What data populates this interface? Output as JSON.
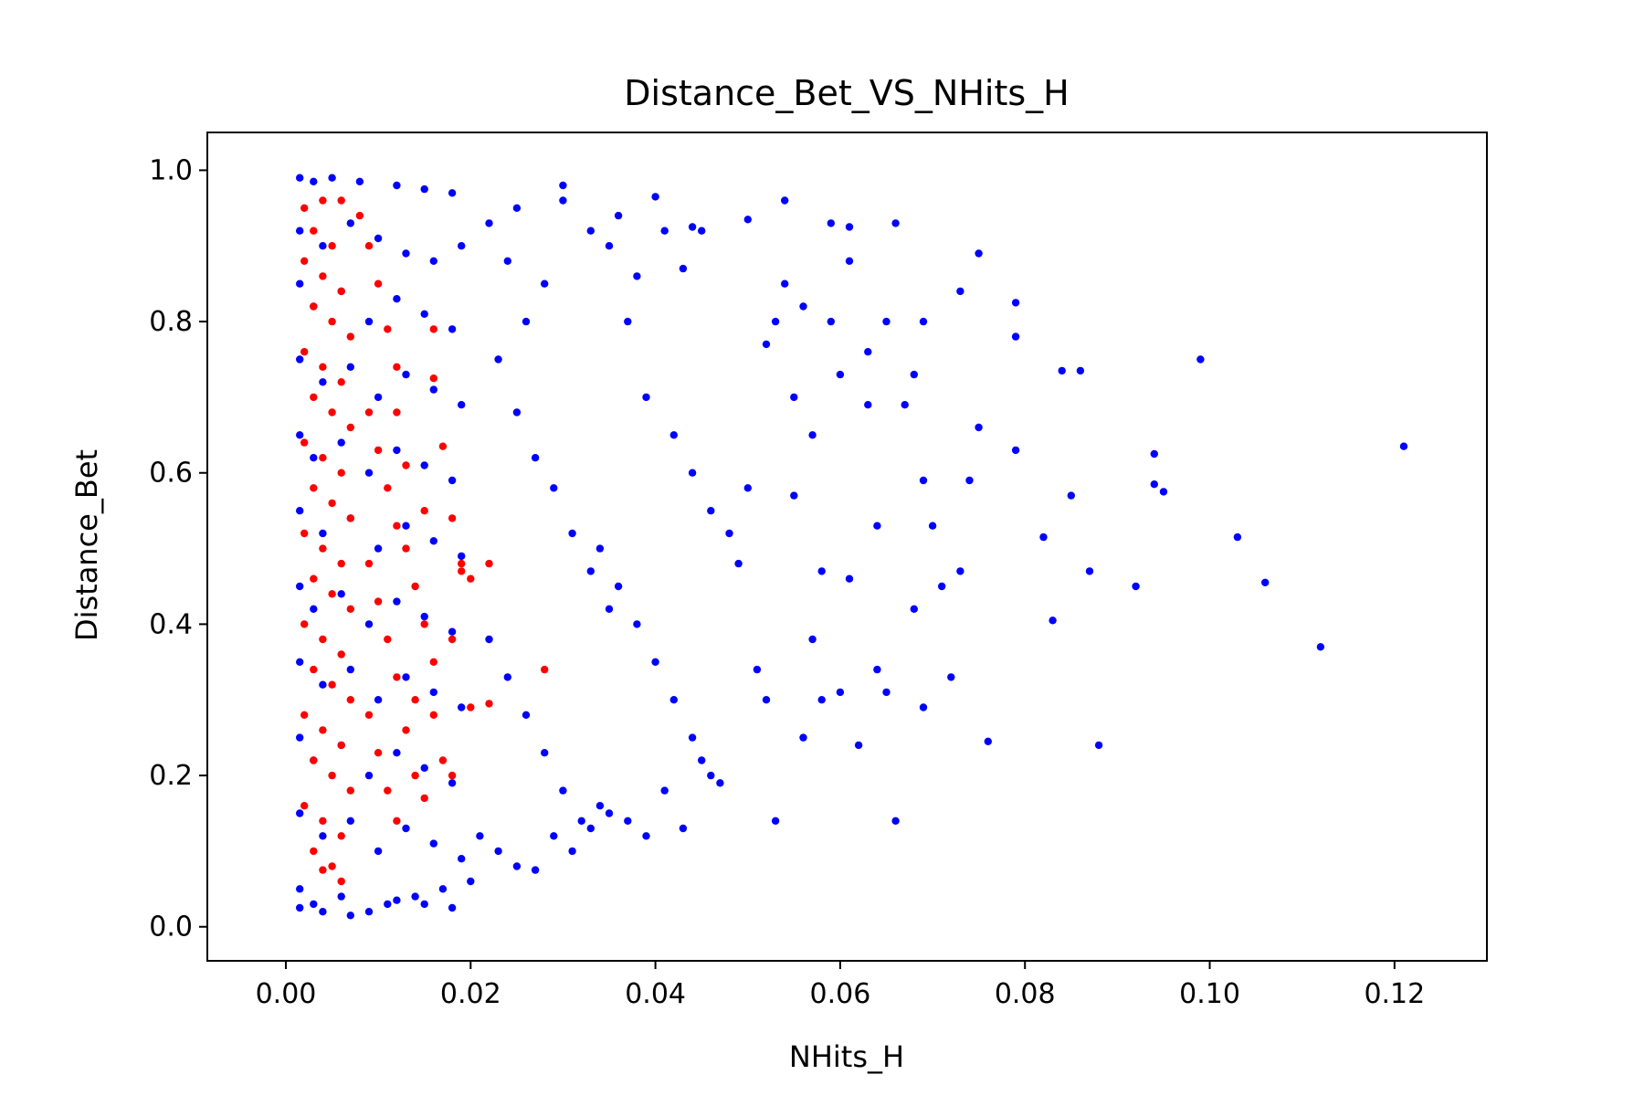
{
  "chart_data": {
    "type": "scatter",
    "title": "Distance_Bet_VS_NHits_H",
    "xlabel": "NHits_H",
    "ylabel": "Distance_Bet",
    "xlim": [
      -0.0085,
      0.13
    ],
    "ylim": [
      -0.045,
      1.05
    ],
    "x_ticks": [
      0.0,
      0.02,
      0.04,
      0.06,
      0.08,
      0.1,
      0.12
    ],
    "x_tick_labels": [
      "0.00",
      "0.02",
      "0.04",
      "0.06",
      "0.08",
      "0.10",
      "0.12"
    ],
    "y_ticks": [
      0.0,
      0.2,
      0.4,
      0.6,
      0.8,
      1.0
    ],
    "y_tick_labels": [
      "0.0",
      "0.2",
      "0.4",
      "0.6",
      "0.8",
      "1.0"
    ],
    "grid": false,
    "legend": "none",
    "series": [
      {
        "color": "#0000ff",
        "points": [
          [
            0.0015,
            0.99
          ],
          [
            0.003,
            0.985
          ],
          [
            0.005,
            0.99
          ],
          [
            0.008,
            0.985
          ],
          [
            0.012,
            0.98
          ],
          [
            0.015,
            0.975
          ],
          [
            0.018,
            0.97
          ],
          [
            0.0015,
            0.92
          ],
          [
            0.004,
            0.9
          ],
          [
            0.007,
            0.93
          ],
          [
            0.01,
            0.91
          ],
          [
            0.013,
            0.89
          ],
          [
            0.016,
            0.88
          ],
          [
            0.019,
            0.9
          ],
          [
            0.0015,
            0.85
          ],
          [
            0.003,
            0.82
          ],
          [
            0.006,
            0.84
          ],
          [
            0.009,
            0.8
          ],
          [
            0.012,
            0.83
          ],
          [
            0.015,
            0.81
          ],
          [
            0.018,
            0.79
          ],
          [
            0.0015,
            0.75
          ],
          [
            0.004,
            0.72
          ],
          [
            0.007,
            0.74
          ],
          [
            0.01,
            0.7
          ],
          [
            0.013,
            0.73
          ],
          [
            0.016,
            0.71
          ],
          [
            0.019,
            0.69
          ],
          [
            0.0015,
            0.65
          ],
          [
            0.003,
            0.62
          ],
          [
            0.006,
            0.64
          ],
          [
            0.009,
            0.6
          ],
          [
            0.012,
            0.63
          ],
          [
            0.015,
            0.61
          ],
          [
            0.018,
            0.59
          ],
          [
            0.0015,
            0.55
          ],
          [
            0.004,
            0.52
          ],
          [
            0.007,
            0.54
          ],
          [
            0.01,
            0.5
          ],
          [
            0.013,
            0.53
          ],
          [
            0.016,
            0.51
          ],
          [
            0.019,
            0.49
          ],
          [
            0.0015,
            0.45
          ],
          [
            0.003,
            0.42
          ],
          [
            0.006,
            0.44
          ],
          [
            0.009,
            0.4
          ],
          [
            0.012,
            0.43
          ],
          [
            0.015,
            0.41
          ],
          [
            0.018,
            0.39
          ],
          [
            0.0015,
            0.35
          ],
          [
            0.004,
            0.32
          ],
          [
            0.007,
            0.34
          ],
          [
            0.01,
            0.3
          ],
          [
            0.013,
            0.33
          ],
          [
            0.016,
            0.31
          ],
          [
            0.019,
            0.29
          ],
          [
            0.0015,
            0.25
          ],
          [
            0.003,
            0.22
          ],
          [
            0.006,
            0.24
          ],
          [
            0.009,
            0.2
          ],
          [
            0.012,
            0.23
          ],
          [
            0.015,
            0.21
          ],
          [
            0.018,
            0.19
          ],
          [
            0.0015,
            0.15
          ],
          [
            0.004,
            0.12
          ],
          [
            0.007,
            0.14
          ],
          [
            0.01,
            0.1
          ],
          [
            0.013,
            0.13
          ],
          [
            0.016,
            0.11
          ],
          [
            0.019,
            0.09
          ],
          [
            0.0015,
            0.05
          ],
          [
            0.003,
            0.03
          ],
          [
            0.006,
            0.04
          ],
          [
            0.009,
            0.02
          ],
          [
            0.012,
            0.035
          ],
          [
            0.015,
            0.03
          ],
          [
            0.018,
            0.025
          ],
          [
            0.0015,
            0.025
          ],
          [
            0.004,
            0.02
          ],
          [
            0.007,
            0.015
          ],
          [
            0.011,
            0.03
          ],
          [
            0.014,
            0.04
          ],
          [
            0.017,
            0.05
          ],
          [
            0.02,
            0.06
          ],
          [
            0.022,
            0.93
          ],
          [
            0.025,
            0.95
          ],
          [
            0.024,
            0.88
          ],
          [
            0.028,
            0.85
          ],
          [
            0.026,
            0.8
          ],
          [
            0.03,
            0.98
          ],
          [
            0.03,
            0.96
          ],
          [
            0.033,
            0.92
          ],
          [
            0.035,
            0.9
          ],
          [
            0.036,
            0.94
          ],
          [
            0.038,
            0.86
          ],
          [
            0.04,
            0.965
          ],
          [
            0.041,
            0.92
          ],
          [
            0.043,
            0.87
          ],
          [
            0.044,
            0.925
          ],
          [
            0.045,
            0.92
          ],
          [
            0.037,
            0.8
          ],
          [
            0.039,
            0.7
          ],
          [
            0.042,
            0.65
          ],
          [
            0.044,
            0.6
          ],
          [
            0.046,
            0.55
          ],
          [
            0.034,
            0.5
          ],
          [
            0.036,
            0.45
          ],
          [
            0.038,
            0.4
          ],
          [
            0.04,
            0.35
          ],
          [
            0.042,
            0.3
          ],
          [
            0.044,
            0.25
          ],
          [
            0.046,
            0.2
          ],
          [
            0.023,
            0.75
          ],
          [
            0.025,
            0.68
          ],
          [
            0.027,
            0.62
          ],
          [
            0.029,
            0.58
          ],
          [
            0.031,
            0.52
          ],
          [
            0.033,
            0.47
          ],
          [
            0.035,
            0.42
          ],
          [
            0.022,
            0.38
          ],
          [
            0.024,
            0.33
          ],
          [
            0.026,
            0.28
          ],
          [
            0.028,
            0.23
          ],
          [
            0.03,
            0.18
          ],
          [
            0.032,
            0.14
          ],
          [
            0.034,
            0.16
          ],
          [
            0.021,
            0.12
          ],
          [
            0.023,
            0.1
          ],
          [
            0.025,
            0.08
          ],
          [
            0.027,
            0.075
          ],
          [
            0.029,
            0.12
          ],
          [
            0.031,
            0.1
          ],
          [
            0.033,
            0.13
          ],
          [
            0.035,
            0.15
          ],
          [
            0.037,
            0.14
          ],
          [
            0.039,
            0.12
          ],
          [
            0.041,
            0.18
          ],
          [
            0.043,
            0.13
          ],
          [
            0.045,
            0.22
          ],
          [
            0.047,
            0.19
          ],
          [
            0.048,
            0.52
          ],
          [
            0.049,
            0.48
          ],
          [
            0.05,
            0.58
          ],
          [
            0.05,
            0.935
          ],
          [
            0.051,
            0.34
          ],
          [
            0.052,
            0.3
          ],
          [
            0.052,
            0.77
          ],
          [
            0.053,
            0.8
          ],
          [
            0.053,
            0.14
          ],
          [
            0.054,
            0.96
          ],
          [
            0.054,
            0.85
          ],
          [
            0.055,
            0.7
          ],
          [
            0.055,
            0.57
          ],
          [
            0.056,
            0.82
          ],
          [
            0.056,
            0.25
          ],
          [
            0.057,
            0.38
          ],
          [
            0.057,
            0.65
          ],
          [
            0.058,
            0.47
          ],
          [
            0.058,
            0.3
          ],
          [
            0.059,
            0.93
          ],
          [
            0.059,
            0.8
          ],
          [
            0.06,
            0.73
          ],
          [
            0.06,
            0.31
          ],
          [
            0.061,
            0.925
          ],
          [
            0.061,
            0.88
          ],
          [
            0.061,
            0.46
          ],
          [
            0.062,
            0.24
          ],
          [
            0.063,
            0.69
          ],
          [
            0.063,
            0.76
          ],
          [
            0.064,
            0.34
          ],
          [
            0.064,
            0.53
          ],
          [
            0.065,
            0.8
          ],
          [
            0.065,
            0.31
          ],
          [
            0.066,
            0.93
          ],
          [
            0.066,
            0.14
          ],
          [
            0.067,
            0.69
          ],
          [
            0.068,
            0.42
          ],
          [
            0.068,
            0.73
          ],
          [
            0.069,
            0.59
          ],
          [
            0.069,
            0.29
          ],
          [
            0.069,
            0.8
          ],
          [
            0.07,
            0.53
          ],
          [
            0.071,
            0.45
          ],
          [
            0.072,
            0.33
          ],
          [
            0.073,
            0.47
          ],
          [
            0.073,
            0.84
          ],
          [
            0.074,
            0.59
          ],
          [
            0.075,
            0.89
          ],
          [
            0.075,
            0.66
          ],
          [
            0.076,
            0.245
          ],
          [
            0.079,
            0.825
          ],
          [
            0.079,
            0.78
          ],
          [
            0.079,
            0.63
          ],
          [
            0.082,
            0.515
          ],
          [
            0.083,
            0.405
          ],
          [
            0.084,
            0.735
          ],
          [
            0.085,
            0.57
          ],
          [
            0.086,
            0.735
          ],
          [
            0.087,
            0.47
          ],
          [
            0.088,
            0.24
          ],
          [
            0.092,
            0.45
          ],
          [
            0.094,
            0.625
          ],
          [
            0.094,
            0.585
          ],
          [
            0.095,
            0.575
          ],
          [
            0.099,
            0.75
          ],
          [
            0.103,
            0.515
          ],
          [
            0.106,
            0.455
          ],
          [
            0.112,
            0.37
          ],
          [
            0.121,
            0.635
          ]
        ]
      },
      {
        "color": "#ff0000",
        "points": [
          [
            0.002,
            0.95
          ],
          [
            0.004,
            0.96
          ],
          [
            0.006,
            0.96
          ],
          [
            0.003,
            0.92
          ],
          [
            0.005,
            0.9
          ],
          [
            0.008,
            0.94
          ],
          [
            0.002,
            0.88
          ],
          [
            0.004,
            0.86
          ],
          [
            0.006,
            0.84
          ],
          [
            0.003,
            0.82
          ],
          [
            0.005,
            0.8
          ],
          [
            0.007,
            0.78
          ],
          [
            0.002,
            0.76
          ],
          [
            0.004,
            0.74
          ],
          [
            0.006,
            0.72
          ],
          [
            0.003,
            0.7
          ],
          [
            0.005,
            0.68
          ],
          [
            0.007,
            0.66
          ],
          [
            0.002,
            0.64
          ],
          [
            0.004,
            0.62
          ],
          [
            0.006,
            0.6
          ],
          [
            0.003,
            0.58
          ],
          [
            0.005,
            0.56
          ],
          [
            0.007,
            0.54
          ],
          [
            0.002,
            0.52
          ],
          [
            0.004,
            0.5
          ],
          [
            0.006,
            0.48
          ],
          [
            0.003,
            0.46
          ],
          [
            0.005,
            0.44
          ],
          [
            0.007,
            0.42
          ],
          [
            0.002,
            0.4
          ],
          [
            0.004,
            0.38
          ],
          [
            0.006,
            0.36
          ],
          [
            0.003,
            0.34
          ],
          [
            0.005,
            0.32
          ],
          [
            0.007,
            0.3
          ],
          [
            0.002,
            0.28
          ],
          [
            0.004,
            0.26
          ],
          [
            0.006,
            0.24
          ],
          [
            0.003,
            0.22
          ],
          [
            0.005,
            0.2
          ],
          [
            0.007,
            0.18
          ],
          [
            0.002,
            0.16
          ],
          [
            0.004,
            0.14
          ],
          [
            0.006,
            0.12
          ],
          [
            0.003,
            0.1
          ],
          [
            0.005,
            0.08
          ],
          [
            0.006,
            0.06
          ],
          [
            0.004,
            0.075
          ],
          [
            0.009,
            0.9
          ],
          [
            0.01,
            0.85
          ],
          [
            0.011,
            0.79
          ],
          [
            0.012,
            0.74
          ],
          [
            0.009,
            0.68
          ],
          [
            0.01,
            0.63
          ],
          [
            0.011,
            0.58
          ],
          [
            0.012,
            0.53
          ],
          [
            0.009,
            0.48
          ],
          [
            0.01,
            0.43
          ],
          [
            0.011,
            0.38
          ],
          [
            0.012,
            0.33
          ],
          [
            0.009,
            0.28
          ],
          [
            0.01,
            0.23
          ],
          [
            0.011,
            0.18
          ],
          [
            0.012,
            0.14
          ],
          [
            0.013,
            0.5
          ],
          [
            0.014,
            0.45
          ],
          [
            0.015,
            0.4
          ],
          [
            0.016,
            0.35
          ],
          [
            0.014,
            0.3
          ],
          [
            0.016,
            0.79
          ],
          [
            0.016,
            0.725
          ],
          [
            0.017,
            0.635
          ],
          [
            0.018,
            0.54
          ],
          [
            0.019,
            0.48
          ],
          [
            0.02,
            0.46
          ],
          [
            0.018,
            0.38
          ],
          [
            0.013,
            0.26
          ],
          [
            0.014,
            0.2
          ],
          [
            0.015,
            0.17
          ],
          [
            0.016,
            0.28
          ],
          [
            0.017,
            0.22
          ],
          [
            0.018,
            0.2
          ],
          [
            0.02,
            0.29
          ],
          [
            0.022,
            0.48
          ],
          [
            0.022,
            0.295
          ],
          [
            0.028,
            0.34
          ],
          [
            0.019,
            0.47
          ],
          [
            0.015,
            0.55
          ],
          [
            0.013,
            0.61
          ],
          [
            0.012,
            0.68
          ]
        ]
      }
    ]
  }
}
